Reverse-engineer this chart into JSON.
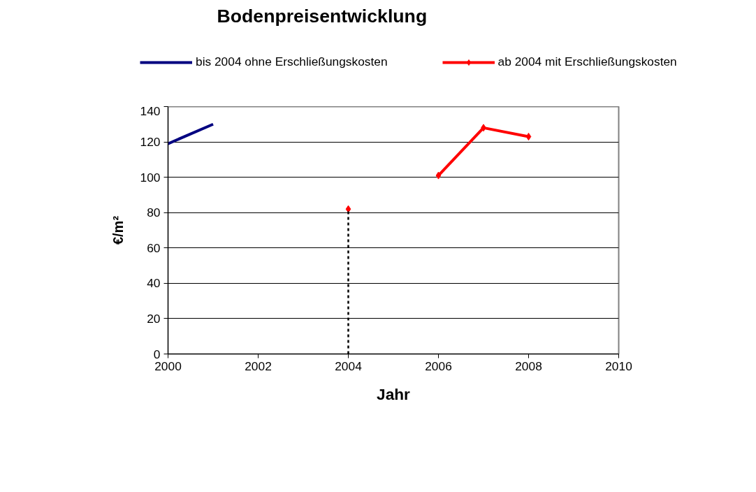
{
  "chart_data": {
    "type": "line",
    "title": "Bodenpreisentwicklung",
    "xlabel": "Jahr",
    "ylabel": "€/m²",
    "xlim": [
      2000,
      2010
    ],
    "xticks": [
      2000,
      2002,
      2004,
      2006,
      2008,
      2010
    ],
    "ylim": [
      0,
      140
    ],
    "yticks": [
      0,
      20,
      40,
      60,
      80,
      100,
      120,
      140
    ],
    "grid": "y",
    "legend": "top",
    "series": [
      {
        "name": "bis 2004 ohne Erschließungskosten",
        "color": "#000080",
        "marker": "none",
        "x": [
          2000,
          2001
        ],
        "values": [
          119,
          130
        ]
      },
      {
        "name": "ab 2004 mit Erschließungskosten",
        "color": "#ff0000",
        "marker": "diamond",
        "x": [
          2004,
          2005,
          2006,
          2007,
          2008
        ],
        "values": [
          82,
          null,
          101,
          128,
          123
        ]
      },
      {
        "color": "#000000",
        "marker": "none",
        "line_style": "dashed",
        "x": [
          2004,
          2004
        ],
        "values": [
          0,
          82
        ]
      }
    ]
  }
}
